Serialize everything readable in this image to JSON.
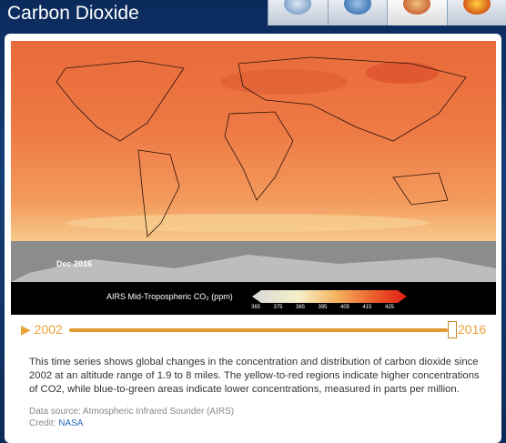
{
  "header": {
    "title": "Carbon Dioxide"
  },
  "visualization": {
    "date": "Dec  2016",
    "colorbar": {
      "label": "AIRS Mid-Tropospheric CO₂ (ppm)",
      "ticks": [
        "365",
        "375",
        "385",
        "395",
        "405",
        "415",
        "425"
      ]
    }
  },
  "slider": {
    "start": "2002",
    "end": "2016"
  },
  "description": "This time series shows global changes in the concentration and distribution of carbon dioxide since 2002 at an altitude range of 1.9 to 8 miles. The yellow-to-red regions indicate higher concentrations of CO2, while blue-to-green areas indicate lower concentrations, measured in parts per million.",
  "source": {
    "text": "Data source: Atmospheric Infrared Sounder (AIRS)",
    "credit_label": "Credit:",
    "credit_link": "NASA"
  }
}
